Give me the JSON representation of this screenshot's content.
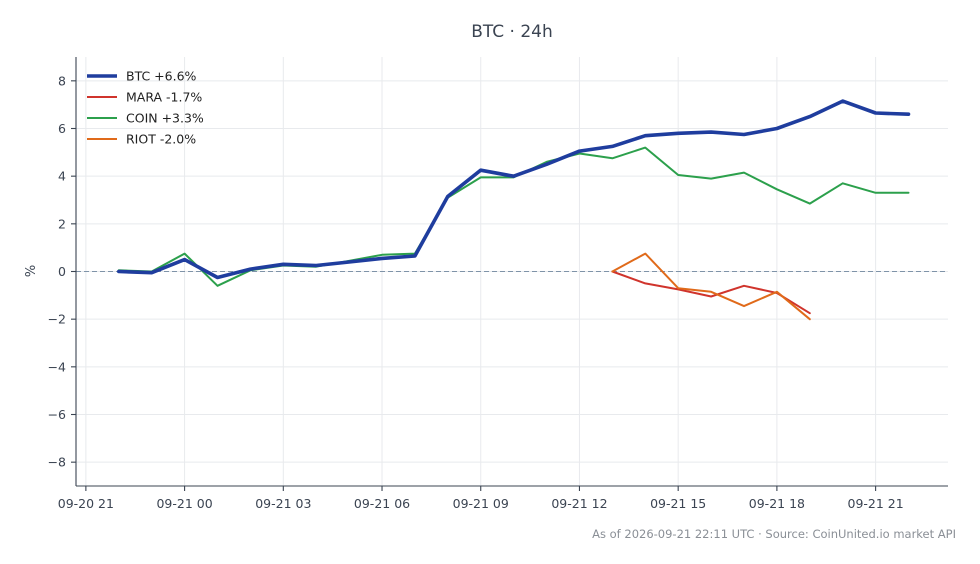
{
  "chart_data": {
    "type": "line",
    "title": "BTC · 24h",
    "ylabel": "%",
    "xlabel": "",
    "ylim": [
      -9,
      9
    ],
    "yticks": [
      -8,
      -6,
      -4,
      -2,
      0,
      2,
      4,
      6,
      8
    ],
    "ytick_labels": [
      "−8",
      "−6",
      "−4",
      "−2",
      "0",
      "2",
      "4",
      "6",
      "8"
    ],
    "xlim": [
      -0.3,
      26.2
    ],
    "x_ticks": [
      {
        "x": 0,
        "label": "09-20 21"
      },
      {
        "x": 3,
        "label": "09-21 00"
      },
      {
        "x": 6,
        "label": "09-21 03"
      },
      {
        "x": 9,
        "label": "09-21 06"
      },
      {
        "x": 12,
        "label": "09-21 09"
      },
      {
        "x": 15,
        "label": "09-21 12"
      },
      {
        "x": 18,
        "label": "09-21 15"
      },
      {
        "x": 21,
        "label": "09-21 18"
      },
      {
        "x": 24,
        "label": "09-21 21"
      }
    ],
    "grid": true,
    "reference_line": 0,
    "legend_position": "top-left",
    "series": [
      {
        "name": "BTC +6.6%",
        "color": "#1f3d9e",
        "width": 3.6,
        "x": [
          1,
          2,
          3,
          4,
          5,
          6,
          7,
          8,
          9,
          10,
          11,
          12,
          13,
          14,
          15,
          16,
          17,
          18,
          19,
          20,
          21,
          22,
          23,
          24,
          25
        ],
        "values": [
          0.0,
          -0.05,
          0.5,
          -0.25,
          0.1,
          0.3,
          0.25,
          0.4,
          0.55,
          0.65,
          3.15,
          4.25,
          4.0,
          4.5,
          5.05,
          5.25,
          5.7,
          5.8,
          5.85,
          5.75,
          6.0,
          6.5,
          7.15,
          6.65,
          6.6
        ]
      },
      {
        "name": "MARA -1.7%",
        "color": "#d0342c",
        "width": 2,
        "x": [
          16,
          17,
          18,
          19,
          20,
          21,
          22
        ],
        "values": [
          0.0,
          -0.5,
          -0.75,
          -1.05,
          -0.6,
          -0.9,
          -1.75
        ]
      },
      {
        "name": "COIN +3.3%",
        "color": "#2ca04c",
        "width": 2,
        "x": [
          1,
          2,
          3,
          4,
          5,
          6,
          7,
          8,
          9,
          10,
          11,
          12,
          13,
          14,
          15,
          16,
          17,
          18,
          19,
          20,
          21,
          22,
          23,
          24,
          25
        ],
        "values": [
          0.05,
          0.0,
          0.75,
          -0.6,
          0.05,
          0.25,
          0.2,
          0.45,
          0.7,
          0.75,
          3.1,
          3.95,
          3.95,
          4.6,
          4.95,
          4.75,
          5.2,
          4.05,
          3.9,
          4.15,
          3.45,
          2.85,
          3.7,
          3.3,
          3.3
        ]
      },
      {
        "name": "RIOT -2.0%",
        "color": "#e06a1a",
        "width": 2,
        "x": [
          16,
          17,
          18,
          19,
          20,
          21,
          22
        ],
        "values": [
          0.0,
          0.75,
          -0.7,
          -0.85,
          -1.45,
          -0.85,
          -2.0
        ]
      }
    ]
  },
  "footer": "As of 2026-09-21 22:11 UTC · Source: CoinUnited.io market API"
}
